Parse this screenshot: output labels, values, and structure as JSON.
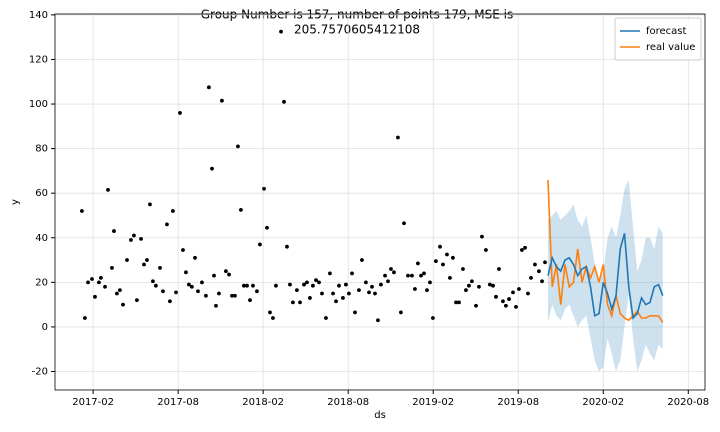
{
  "chart_data": {
    "type": "forecast",
    "title": [
      "Group Number is 157, number of points 179, MSE is",
      "205.7570605412108"
    ],
    "x_label": "ds",
    "y_label": "y",
    "xlim": [
      -1.69,
      44.18
    ],
    "ylim": [
      -28.3,
      140.4
    ],
    "xticks": [
      {
        "value": 1,
        "label": "2017-02"
      },
      {
        "value": 7,
        "label": "2017-08"
      },
      {
        "value": 13,
        "label": "2018-02"
      },
      {
        "value": 19,
        "label": "2018-08"
      },
      {
        "value": 25,
        "label": "2019-02"
      },
      {
        "value": 31,
        "label": "2019-08"
      },
      {
        "value": 37,
        "label": "2020-02"
      },
      {
        "value": 43,
        "label": "2020-08"
      }
    ],
    "yticks": [
      -20,
      0,
      20,
      40,
      60,
      80,
      100,
      120,
      140
    ],
    "grid": true,
    "legend": "upper right",
    "scatter": {
      "color": "#000000",
      "x": [
        0.21,
        0.42,
        0.64,
        0.92,
        1.13,
        1.41,
        1.55,
        1.84,
        2.05,
        2.33,
        2.47,
        2.68,
        2.89,
        3.11,
        3.39,
        3.67,
        3.88,
        4.09,
        4.38,
        4.59,
        4.8,
        5.01,
        5.22,
        5.43,
        5.72,
        5.93,
        6.21,
        6.42,
        6.63,
        6.85,
        7.13,
        7.34,
        7.55,
        7.76,
        7.97,
        8.19,
        8.4,
        8.68,
        8.96,
        9.17,
        9.39,
        9.53,
        9.67,
        9.88,
        10.09,
        10.37,
        10.59,
        10.8,
        11.01,
        11.22,
        11.43,
        11.64,
        11.86,
        12.07,
        12.28,
        12.56,
        12.77,
        13.06,
        13.27,
        13.48,
        13.69,
        13.9,
        14.26,
        14.47,
        14.68,
        14.89,
        15.1,
        15.38,
        15.6,
        15.88,
        16.09,
        16.3,
        16.51,
        16.73,
        16.94,
        17.15,
        17.43,
        17.71,
        17.93,
        18.14,
        18.35,
        18.63,
        18.84,
        19.05,
        19.27,
        19.48,
        19.76,
        19.97,
        20.25,
        20.47,
        20.68,
        20.89,
        21.1,
        21.31,
        21.6,
        21.81,
        22.02,
        22.23,
        22.51,
        22.72,
        22.94,
        23.22,
        23.5,
        23.71,
        23.92,
        24.14,
        24.35,
        24.56,
        24.77,
        24.98,
        25.19,
        25.48,
        25.69,
        25.97,
        26.18,
        26.39,
        26.61,
        26.82,
        27.1,
        27.31,
        27.52,
        27.73,
        28.02,
        28.23,
        28.44,
        28.72,
        29.0,
        29.22,
        29.43,
        29.64,
        29.92,
        30.13,
        30.35,
        30.63,
        30.84,
        31.05,
        31.26,
        31.48,
        31.69,
        31.9,
        32.18,
        32.46,
        32.68,
        32.89
      ],
      "values": [
        52,
        4,
        20,
        21.5,
        13.5,
        20,
        22,
        18,
        61.5,
        26.5,
        43,
        15,
        16.5,
        10,
        30,
        39,
        41,
        12,
        39.5,
        28,
        30,
        55,
        20.5,
        18.5,
        26.5,
        16,
        46,
        11.5,
        52,
        15.5,
        96,
        34.5,
        24.5,
        19,
        18,
        31,
        16,
        20,
        14,
        107.5,
        71,
        23,
        9.5,
        15,
        101.5,
        25,
        23.5,
        14,
        14,
        81,
        52.5,
        18.5,
        18.5,
        12,
        18.5,
        16,
        37,
        62,
        44.5,
        6.5,
        4,
        18.5,
        132.5,
        101,
        36,
        19,
        11,
        16.5,
        11,
        19,
        20,
        13,
        18.5,
        21,
        20,
        15,
        4,
        24,
        15,
        11.5,
        18.5,
        13,
        19,
        15,
        24,
        6.5,
        16.5,
        30,
        20,
        15.5,
        18,
        15,
        3,
        19,
        23,
        20.5,
        26,
        24.5,
        85,
        6.5,
        46.5,
        23,
        23,
        17,
        28.5,
        23,
        24,
        16.5,
        20,
        4,
        29.5,
        36,
        28,
        32.5,
        22,
        31,
        11,
        11,
        26,
        16.5,
        18.5,
        20.5,
        9.5,
        18,
        40.5,
        34.5,
        19,
        18.5,
        13.5,
        26,
        11.5,
        9.5,
        12.5,
        15.5,
        9,
        17,
        34.5,
        35.5,
        15,
        22,
        28,
        25,
        20.5,
        29
      ]
    },
    "x": [
      33.1,
      33.4,
      33.7,
      34.0,
      34.3,
      34.6,
      34.9,
      35.2,
      35.5,
      35.8,
      36.1,
      36.4,
      36.7,
      37.0,
      37.3,
      37.6,
      37.9,
      38.2,
      38.5,
      38.8,
      39.1,
      39.4,
      39.7,
      40.0,
      40.3,
      40.6,
      40.9,
      41.2
    ],
    "band": {
      "color": "#1f77b4",
      "upper": [
        48,
        50,
        52,
        48,
        50,
        52,
        55,
        48,
        45,
        50,
        40,
        28,
        20,
        25,
        40,
        45,
        40,
        50,
        62,
        66,
        45,
        25,
        30,
        40,
        40,
        35,
        45,
        42
      ],
      "lower": [
        2,
        10,
        5,
        3,
        8,
        10,
        5,
        0,
        3,
        5,
        -5,
        -15,
        -20,
        -18,
        -5,
        -12,
        -20,
        -15,
        0,
        15,
        -5,
        -20,
        -15,
        -8,
        -12,
        -15,
        -8,
        -10
      ]
    },
    "series": [
      {
        "name": "forecast",
        "color": "#1f77b4",
        "values": [
          23,
          31,
          27,
          25,
          30,
          31,
          28,
          23,
          26,
          27,
          18,
          5,
          6,
          20,
          15,
          8,
          14,
          35,
          42,
          18,
          4,
          6,
          13,
          10,
          11,
          18,
          19,
          14
        ]
      },
      {
        "name": "real value",
        "color": "#ff7f0e",
        "values": [
          66,
          18,
          28,
          10,
          28,
          18,
          20,
          35,
          20,
          27,
          22,
          27,
          20,
          28,
          10,
          5,
          14,
          6,
          4,
          3,
          5,
          7,
          4,
          4,
          5,
          5,
          5,
          2
        ]
      }
    ]
  }
}
